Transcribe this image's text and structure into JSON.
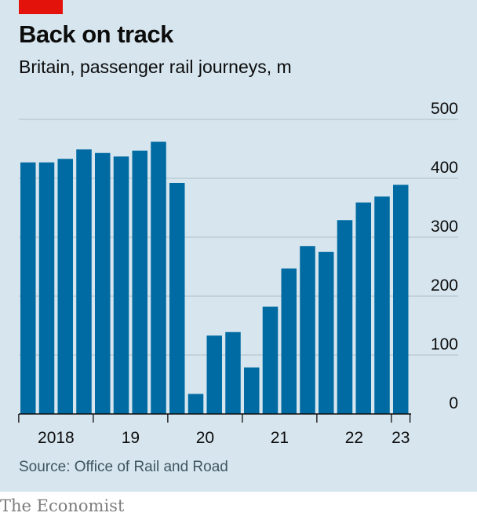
{
  "header": {
    "title": "Back on track",
    "subtitle": "Britain, passenger rail journeys, m"
  },
  "footer": {
    "source": "Source: Office of Rail and Road",
    "brand": "The Economist"
  },
  "colors": {
    "bar": "#006ba2",
    "background": "#d6e5ee",
    "gridline": "#b7c6cf",
    "accent": "#e3120b"
  },
  "chart_data": {
    "type": "bar",
    "title": "Back on track",
    "subtitle": "Britain, passenger rail journeys, m",
    "xlabel": "",
    "ylabel": "",
    "ylim": [
      0,
      500
    ],
    "yticks": [
      0,
      100,
      200,
      300,
      400,
      500
    ],
    "grid": true,
    "year_labels": [
      {
        "label": "2018",
        "quarter_index": 1.5
      },
      {
        "label": "19",
        "quarter_index": 5.5
      },
      {
        "label": "20",
        "quarter_index": 9.5
      },
      {
        "label": "21",
        "quarter_index": 13.5
      },
      {
        "label": "22",
        "quarter_index": 17.5
      },
      {
        "label": "23",
        "quarter_index": 20
      }
    ],
    "year_boundaries": [
      4,
      8,
      12,
      16,
      20
    ],
    "categories": [
      "2018 Q1",
      "2018 Q2",
      "2018 Q3",
      "2018 Q4",
      "2019 Q1",
      "2019 Q2",
      "2019 Q3",
      "2019 Q4",
      "2020 Q1",
      "2020 Q2",
      "2020 Q3",
      "2020 Q4",
      "2021 Q1",
      "2021 Q2",
      "2021 Q3",
      "2021 Q4",
      "2022 Q1",
      "2022 Q2",
      "2022 Q3",
      "2022 Q4",
      "2023 Q1"
    ],
    "values": [
      427,
      427,
      433,
      449,
      443,
      437,
      447,
      462,
      392,
      34,
      133,
      139,
      79,
      182,
      247,
      285,
      275,
      329,
      359,
      369,
      389
    ]
  }
}
